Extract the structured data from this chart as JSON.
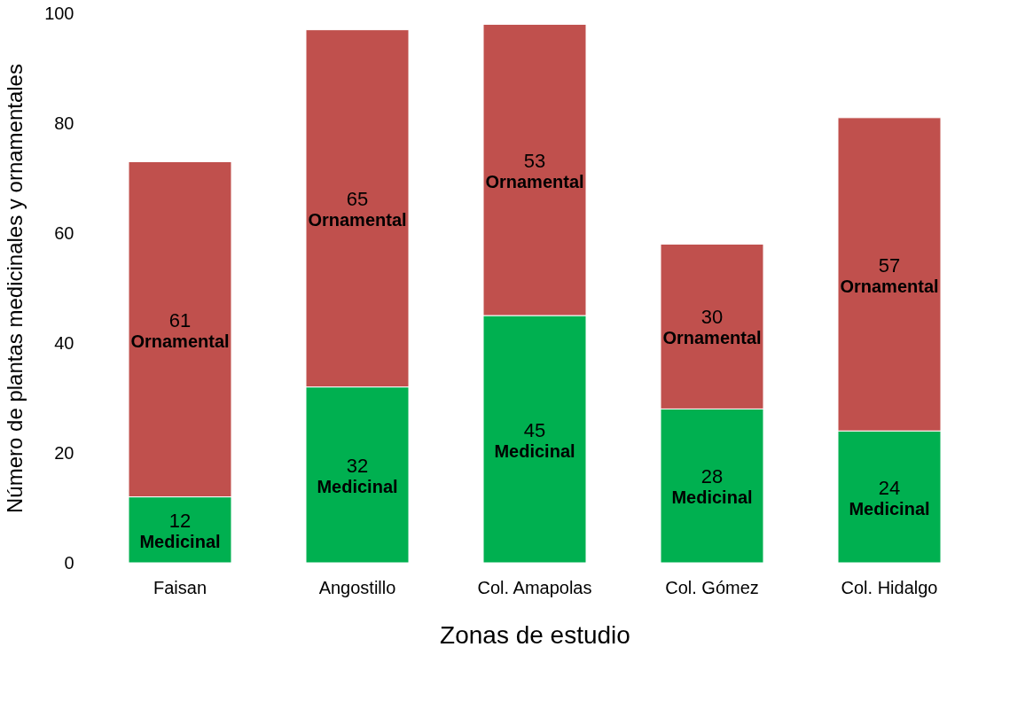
{
  "chart_data": {
    "type": "bar",
    "stacked": true,
    "xlabel": "Zonas de estudio",
    "ylabel": "Número de plantas medicinales y ornamentales",
    "categories": [
      "Faisan",
      "Angostillo",
      "Col. Amapolas",
      "Col. Gómez",
      "Col. Hidalgo"
    ],
    "series": [
      {
        "name": "Medicinal",
        "color": "#00b050",
        "values": [
          12,
          32,
          45,
          28,
          24
        ]
      },
      {
        "name": "Ornamental",
        "color": "#c0504d",
        "values": [
          61,
          65,
          53,
          30,
          57
        ]
      }
    ],
    "ylim": [
      0,
      100
    ],
    "yticks": [
      0,
      20,
      40,
      60,
      80,
      100
    ],
    "grid": false,
    "legend": false,
    "data_labels": true
  }
}
